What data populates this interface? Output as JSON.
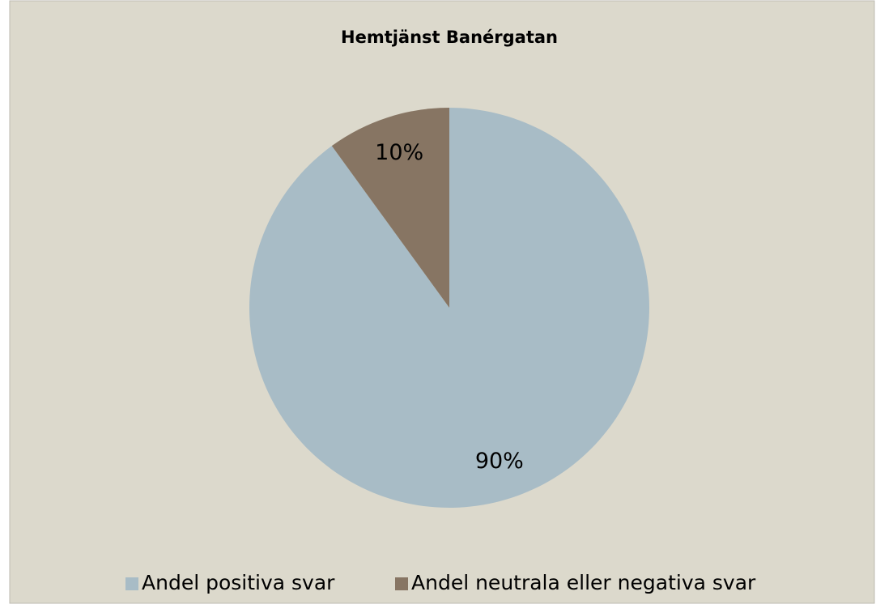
{
  "chart_data": {
    "type": "pie",
    "title": "Hemtjänst Banérgatan",
    "categories": [
      "Andel positiva svar",
      "Andel neutrala eller negativa svar"
    ],
    "values": [
      90,
      10
    ],
    "value_labels": [
      "90%",
      "10%"
    ],
    "colors": [
      "#a8bcc6",
      "#877563"
    ],
    "legend": "bottom"
  }
}
